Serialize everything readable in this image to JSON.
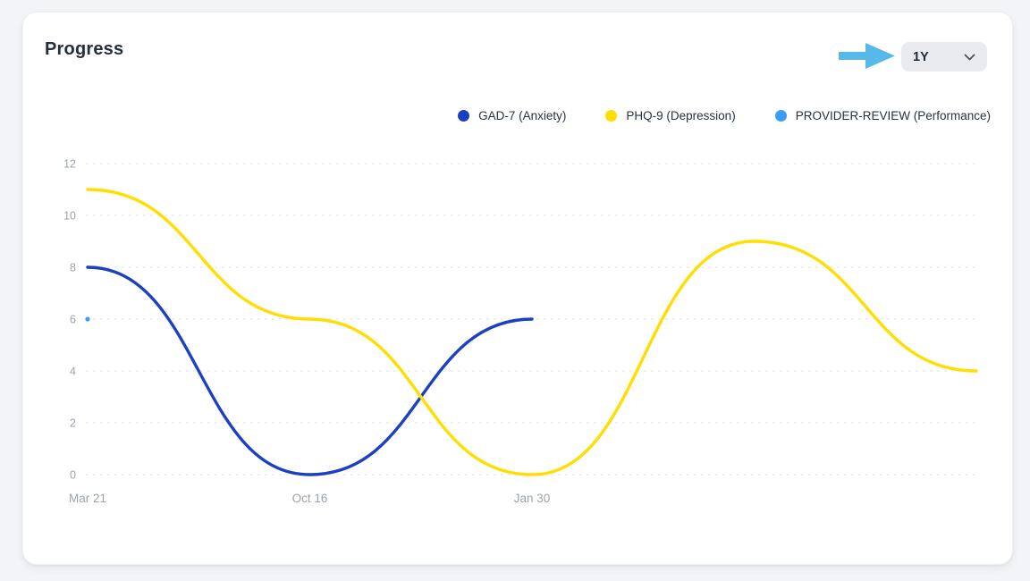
{
  "header": {
    "title": "Progress"
  },
  "controls": {
    "range_selector": {
      "value": "1Y"
    }
  },
  "annotation": {
    "kind": "pointer-arrow",
    "points_at": "range-selector",
    "color": "#57B8EA"
  },
  "colors": {
    "page_background": "#f2f4f7",
    "card_background": "#ffffff",
    "title_text": "#232e40",
    "axis_text": "#9aa3ae",
    "gridline": "#e5e7eb",
    "dropdown_background": "#e9ebef"
  },
  "chart_data": {
    "type": "line",
    "title": "Progress",
    "xlabel": "",
    "ylabel": "",
    "ylim": [
      0,
      12
    ],
    "yticks": [
      0,
      2,
      4,
      6,
      8,
      10,
      12
    ],
    "grid": "horizontal-dashed",
    "legend_position": "top",
    "x_point_count": 5,
    "x_tick_labels": [
      {
        "index": 0,
        "label": "Mar 21"
      },
      {
        "index": 1,
        "label": "Oct 16"
      },
      {
        "index": 2,
        "label": "Jan 30"
      }
    ],
    "series": [
      {
        "name": "GAD-7 (Anxiety)",
        "color": "#1C40C2",
        "style": "line",
        "x": [
          0,
          1,
          2
        ],
        "values": [
          8,
          0,
          6
        ]
      },
      {
        "name": "PHQ-9 (Depression)",
        "color": "#FFDE00",
        "style": "line",
        "x": [
          0,
          1,
          2,
          3,
          4
        ],
        "values": [
          11,
          6,
          0,
          9,
          4
        ]
      },
      {
        "name": "PROVIDER-REVIEW (Performance)",
        "color": "#389FF5",
        "style": "point",
        "x": [
          0
        ],
        "values": [
          6
        ]
      }
    ]
  }
}
